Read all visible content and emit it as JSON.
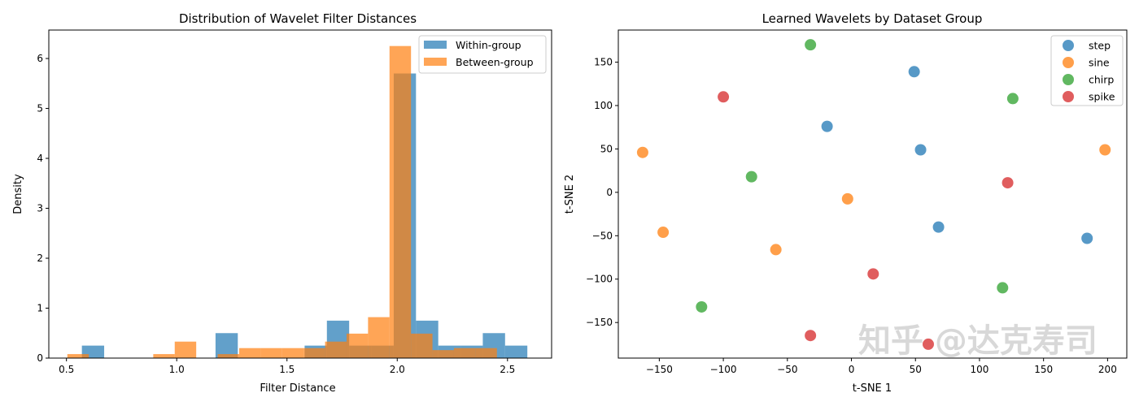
{
  "chart_data": [
    {
      "type": "bar",
      "subtype": "histogram",
      "title": "Distribution of Wavelet Filter Distances",
      "xlabel": "Filter Distance",
      "ylabel": "Density",
      "xlim": [
        0.42,
        2.7
      ],
      "ylim": [
        0,
        6.57
      ],
      "xticks": [
        "0.5",
        "1.0",
        "1.5",
        "2.0",
        "2.5"
      ],
      "xtick_values": [
        0.5,
        1.0,
        1.5,
        2.0,
        2.5
      ],
      "yticks": [
        "0",
        "1",
        "2",
        "3",
        "4",
        "5",
        "6"
      ],
      "ytick_values": [
        0,
        1,
        2,
        3,
        4,
        5,
        6
      ],
      "grid": false,
      "legend_position": "top-right",
      "alpha": 0.7,
      "series": [
        {
          "name": "Within-group",
          "color": "#1f77b4",
          "bin_start": 0.57,
          "bin_end": 2.59,
          "values": [
            0.25,
            0,
            0,
            0,
            0,
            0,
            0.5,
            0,
            0,
            0,
            0.25,
            0.75,
            0.25,
            0.25,
            5.7,
            0.75,
            0.25,
            0.25,
            0.5,
            0.25
          ]
        },
        {
          "name": "Between-group",
          "color": "#ff7f0e",
          "bin_start": 0.504,
          "bin_end": 2.452,
          "values": [
            0.08,
            0,
            0,
            0,
            0.08,
            0.33,
            0,
            0.08,
            0.2,
            0.2,
            0.2,
            0.2,
            0.33,
            0.49,
            0.82,
            6.25,
            0.49,
            0.16,
            0.2,
            0.2
          ]
        }
      ]
    },
    {
      "type": "scatter",
      "title": "Learned Wavelets by Dataset Group",
      "xlabel": "t-SNE 1",
      "ylabel": "t-SNE 2",
      "xlim": [
        -182,
        215
      ],
      "ylim": [
        -191,
        187
      ],
      "xticks": [
        "−150",
        "−100",
        "−50",
        "0",
        "50",
        "100",
        "150",
        "200"
      ],
      "xtick_values": [
        -150,
        -100,
        -50,
        0,
        50,
        100,
        150,
        200
      ],
      "yticks": [
        "−150",
        "−100",
        "−50",
        "0",
        "50",
        "100",
        "150"
      ],
      "ytick_values": [
        -150,
        -100,
        -50,
        0,
        50,
        100,
        150
      ],
      "grid": false,
      "legend_position": "top-right",
      "alpha": 0.75,
      "series": [
        {
          "name": "step",
          "color": "#1f77b4",
          "points": [
            [
              49,
              139
            ],
            [
              -19,
              76
            ],
            [
              54,
              49
            ],
            [
              68,
              -40
            ],
            [
              184,
              -53
            ]
          ]
        },
        {
          "name": "sine",
          "color": "#ff7f0e",
          "points": [
            [
              -163,
              46
            ],
            [
              -147,
              -46
            ],
            [
              -3,
              -7.5
            ],
            [
              -59,
              -66
            ],
            [
              198,
              49
            ]
          ]
        },
        {
          "name": "chirp",
          "color": "#2ca02c",
          "points": [
            [
              -32,
              170
            ],
            [
              126,
              108
            ],
            [
              -78,
              18
            ],
            [
              118,
              -110
            ],
            [
              -117,
              -132
            ]
          ]
        },
        {
          "name": "spike",
          "color": "#d62728",
          "points": [
            [
              -100,
              110
            ],
            [
              122,
              11
            ],
            [
              17,
              -94
            ],
            [
              -32,
              -165
            ],
            [
              60,
              -175
            ]
          ]
        }
      ]
    }
  ],
  "watermark": "知乎 @达克寿司"
}
